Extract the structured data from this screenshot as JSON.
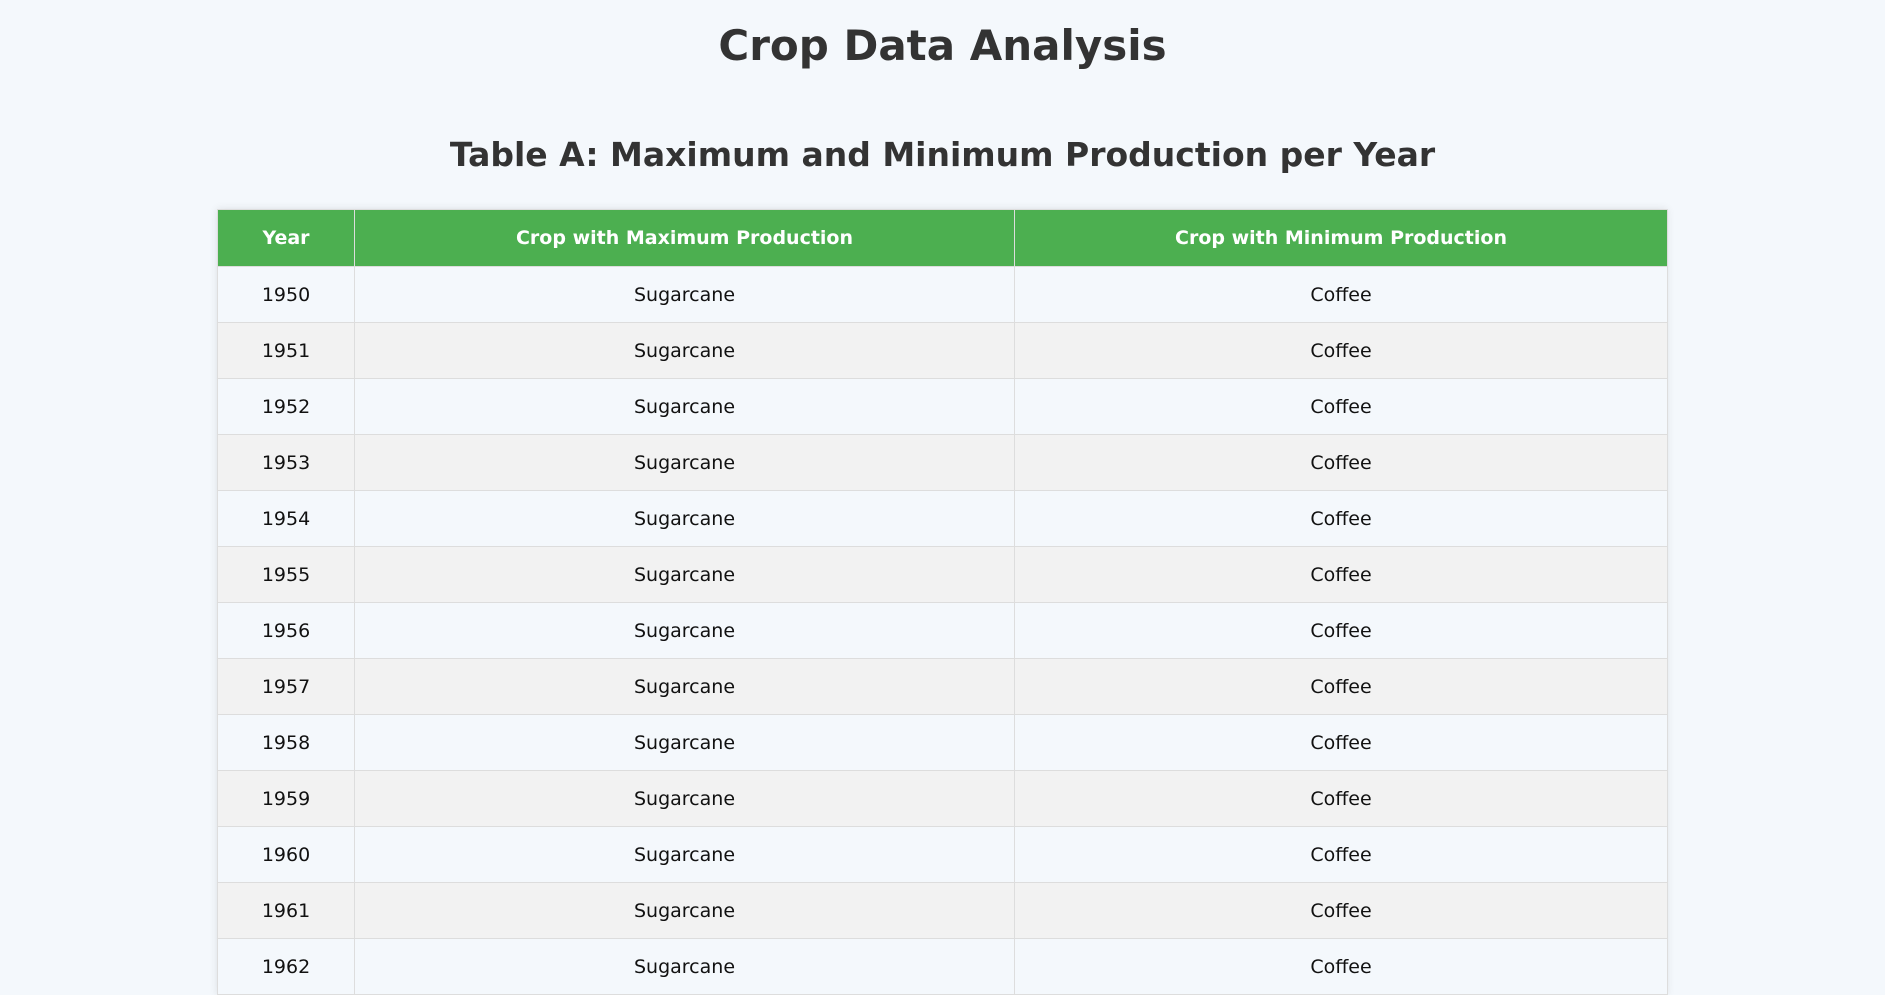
{
  "page": {
    "title": "Crop Data Analysis"
  },
  "table_a": {
    "title": "Table A: Maximum and Minimum Production per Year",
    "columns": [
      "Year",
      "Crop with Maximum Production",
      "Crop with Minimum Production"
    ],
    "rows": [
      {
        "year": "1950",
        "max_crop": "Sugarcane",
        "min_crop": "Coffee"
      },
      {
        "year": "1951",
        "max_crop": "Sugarcane",
        "min_crop": "Coffee"
      },
      {
        "year": "1952",
        "max_crop": "Sugarcane",
        "min_crop": "Coffee"
      },
      {
        "year": "1953",
        "max_crop": "Sugarcane",
        "min_crop": "Coffee"
      },
      {
        "year": "1954",
        "max_crop": "Sugarcane",
        "min_crop": "Coffee"
      },
      {
        "year": "1955",
        "max_crop": "Sugarcane",
        "min_crop": "Coffee"
      },
      {
        "year": "1956",
        "max_crop": "Sugarcane",
        "min_crop": "Coffee"
      },
      {
        "year": "1957",
        "max_crop": "Sugarcane",
        "min_crop": "Coffee"
      },
      {
        "year": "1958",
        "max_crop": "Sugarcane",
        "min_crop": "Coffee"
      },
      {
        "year": "1959",
        "max_crop": "Sugarcane",
        "min_crop": "Coffee"
      },
      {
        "year": "1960",
        "max_crop": "Sugarcane",
        "min_crop": "Coffee"
      },
      {
        "year": "1961",
        "max_crop": "Sugarcane",
        "min_crop": "Coffee"
      },
      {
        "year": "1962",
        "max_crop": "Sugarcane",
        "min_crop": "Coffee"
      }
    ]
  },
  "colors": {
    "header_bg": "#4caf50",
    "page_bg": "#f4f8fc",
    "row_alt_bg": "#f2f2f2"
  }
}
